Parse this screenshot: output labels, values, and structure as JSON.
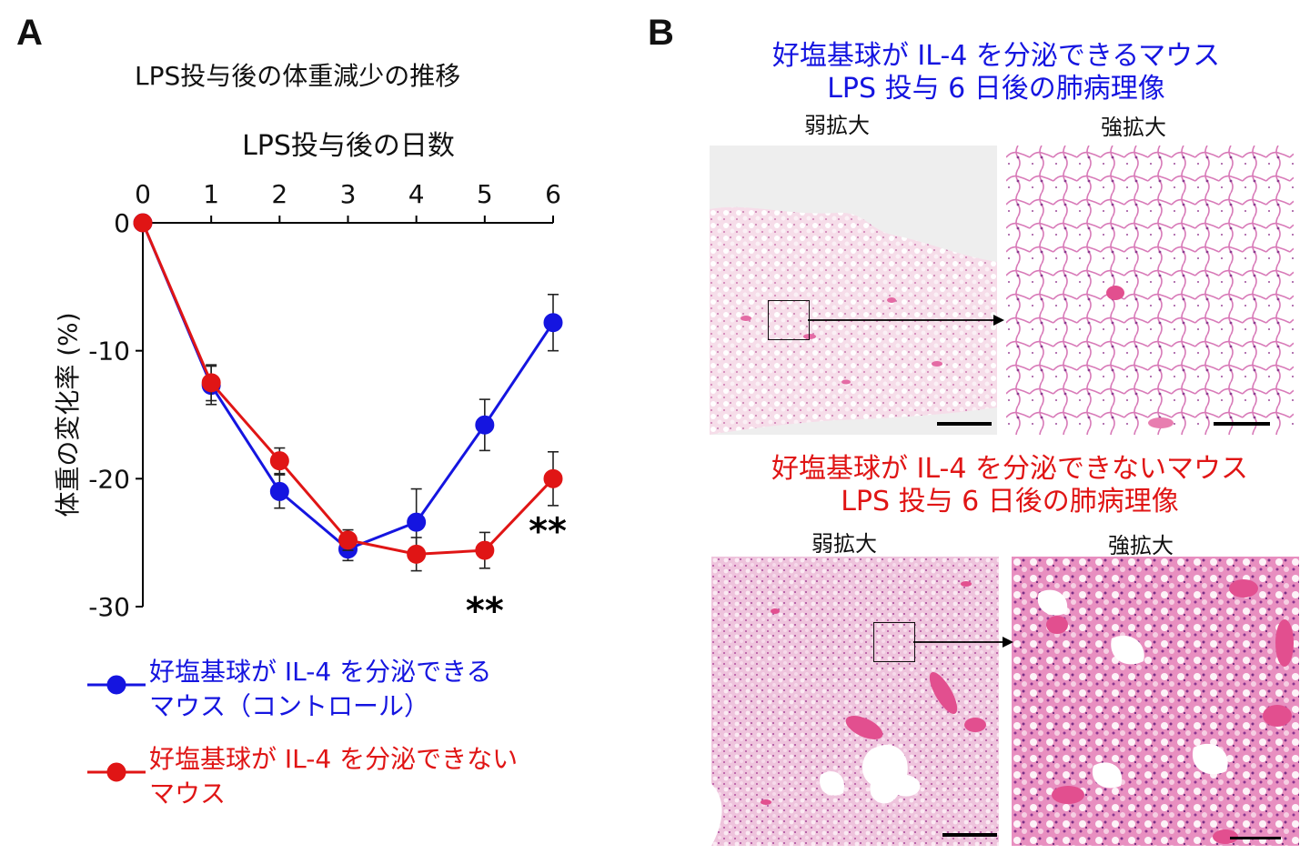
{
  "panel_a": {
    "letter": "A",
    "title": "LPS投与後の体重減少の推移",
    "legend": [
      {
        "name": "好塩基球が IL-4 を分泌できる\nマウス（コントロール）",
        "line1": "好塩基球が IL-4 を分泌できる",
        "line2": "マウス（コントロール）",
        "color": "#1515e0"
      },
      {
        "name": "好塩基球が IL-4 を分泌できない\nマウス",
        "line1": "好塩基球が IL-4 を分泌できない",
        "line2": "マウス",
        "color": "#e01515"
      }
    ]
  },
  "chart_data": {
    "type": "line",
    "title": "LPS投与後の体重減少の推移",
    "xlabel": "LPS投与後の日数",
    "ylabel": "体重の変化率 (%)",
    "x": [
      0,
      1,
      2,
      3,
      4,
      5,
      6
    ],
    "xlim": [
      0,
      6
    ],
    "ylim": [
      -30,
      0
    ],
    "yticks": [
      0,
      -10,
      -20,
      -30
    ],
    "x_axis_position": "top",
    "grid": false,
    "legend_position": "bottom",
    "series": [
      {
        "name": "好塩基球が IL-4 を分泌できる\nマウス（コントロール）",
        "color": "#1515e0",
        "values": [
          0,
          -12.7,
          -21.0,
          -25.5,
          -23.4,
          -15.8,
          -7.8
        ],
        "errors": [
          0,
          1.5,
          1.3,
          0.9,
          2.6,
          2.0,
          2.2
        ]
      },
      {
        "name": "好塩基球が IL-4 を分泌できない\nマウス",
        "color": "#e01515",
        "values": [
          0,
          -12.5,
          -18.6,
          -24.8,
          -25.9,
          -25.6,
          -20.0
        ],
        "errors": [
          0,
          1.4,
          1.0,
          0.8,
          1.3,
          1.4,
          2.1
        ]
      }
    ],
    "annotations": [
      {
        "text": "**",
        "x": 5
      },
      {
        "text": "**",
        "x": 6
      }
    ]
  },
  "panel_b": {
    "letter": "B",
    "top": {
      "title_line1": "好塩基球が IL-4 を分泌できるマウス",
      "title_line2": "LPS 投与 6 日後の肺病理像",
      "color": "#1515e0",
      "low_label": "弱拡大",
      "high_label": "強拡大"
    },
    "bottom": {
      "title_line1": "好塩基球が IL-4 を分泌できないマウス",
      "title_line2": "LPS 投与 6 日後の肺病理像",
      "color": "#e01515",
      "low_label": "弱拡大",
      "high_label": "強拡大"
    }
  }
}
